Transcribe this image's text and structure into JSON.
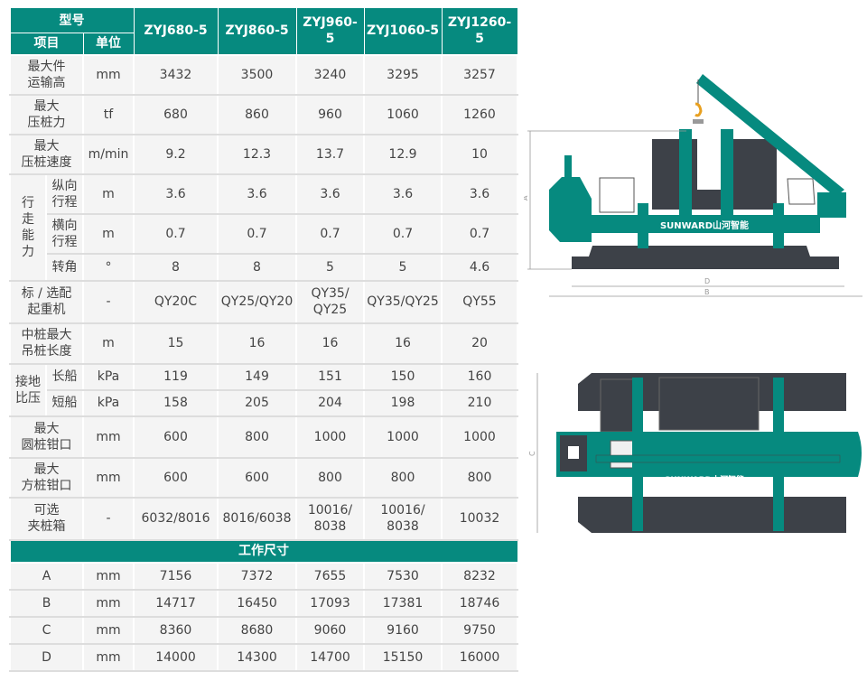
{
  "header": {
    "model_label": "型号",
    "item_label": "项目",
    "unit_label": "单位",
    "models": [
      "ZYJ680-5",
      "ZYJ860-5",
      "ZYJ960-5",
      "ZYJ1060-5",
      "ZYJ1260-5"
    ]
  },
  "rows": [
    {
      "item": "最大件\n运输高",
      "unit": "mm",
      "values": [
        "3432",
        "3500",
        "3240",
        "3295",
        "3257"
      ]
    },
    {
      "item": "最大\n压桩力",
      "unit": "tf",
      "values": [
        "680",
        "860",
        "960",
        "1060",
        "1260"
      ]
    },
    {
      "item": "最大\n压桩速度",
      "unit": "m/min",
      "values": [
        "9.2",
        "12.3",
        "13.7",
        "12.9",
        "10"
      ]
    }
  ],
  "travel": {
    "group": "行\n走\n能\n力",
    "rows": [
      {
        "item": "纵向\n行程",
        "unit": "m",
        "values": [
          "3.6",
          "3.6",
          "3.6",
          "3.6",
          "3.6"
        ]
      },
      {
        "item": "横向\n行程",
        "unit": "m",
        "values": [
          "0.7",
          "0.7",
          "0.7",
          "0.7",
          "0.7"
        ]
      },
      {
        "item": "转角",
        "unit": "°",
        "values": [
          "8",
          "8",
          "5",
          "5",
          "4.6"
        ]
      }
    ]
  },
  "rows2": [
    {
      "item": "标 / 选配\n起重机",
      "unit": "-",
      "values": [
        "QY20C",
        "QY25/QY20",
        "QY35/\nQY25",
        "QY35/QY25",
        "QY55"
      ]
    },
    {
      "item": "中桩最大\n吊桩长度",
      "unit": "m",
      "values": [
        "15",
        "16",
        "16",
        "16",
        "20"
      ]
    }
  ],
  "pressure": {
    "group": "接地\n比压",
    "rows": [
      {
        "item": "长船",
        "unit": "kPa",
        "values": [
          "119",
          "149",
          "151",
          "150",
          "160"
        ]
      },
      {
        "item": "短船",
        "unit": "kPa",
        "values": [
          "158",
          "205",
          "204",
          "198",
          "210"
        ]
      }
    ]
  },
  "rows3": [
    {
      "item": "最大\n圆桩钳口",
      "unit": "mm",
      "values": [
        "600",
        "800",
        "1000",
        "1000",
        "1000"
      ]
    },
    {
      "item": "最大\n方桩钳口",
      "unit": "mm",
      "values": [
        "600",
        "600",
        "800",
        "800",
        "800"
      ]
    },
    {
      "item": "可选\n夹桩箱",
      "unit": "-",
      "values": [
        "6032/8016",
        "8016/6038",
        "10016/\n8038",
        "10016/\n8038",
        "10032"
      ]
    }
  ],
  "dims_title": "工作尺寸",
  "dims": [
    {
      "item": "A",
      "unit": "mm",
      "values": [
        "7156",
        "7372",
        "7655",
        "7530",
        "8232"
      ]
    },
    {
      "item": "B",
      "unit": "mm",
      "values": [
        "14717",
        "16450",
        "17093",
        "17381",
        "18746"
      ]
    },
    {
      "item": "C",
      "unit": "mm",
      "values": [
        "8360",
        "8680",
        "9060",
        "9160",
        "9750"
      ]
    },
    {
      "item": "D",
      "unit": "mm",
      "values": [
        "14000",
        "14300",
        "14700",
        "15150",
        "16000"
      ]
    }
  ],
  "drawing": {
    "brand": "SUNWARD山河智能",
    "labels": {
      "A": "A",
      "B": "B",
      "C": "C",
      "D": "D"
    }
  },
  "colors": {
    "teal": "#068a7f",
    "dark": "#3d4148",
    "row_bg": "#f4f4f4"
  }
}
